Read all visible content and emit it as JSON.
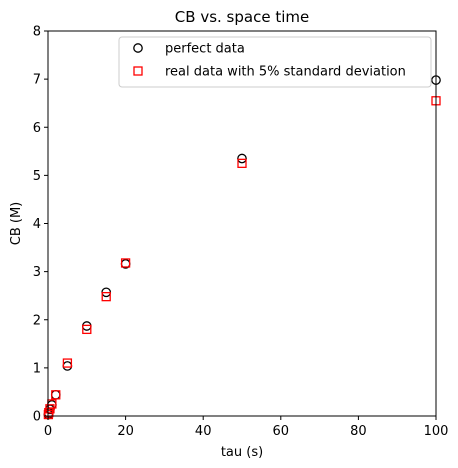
{
  "chart_data": {
    "type": "scatter",
    "title": "CB vs. space time",
    "xlabel": "tau (s)",
    "ylabel": "CB (M)",
    "xlim": [
      0,
      100
    ],
    "ylim": [
      0,
      8
    ],
    "xticks": [
      0,
      20,
      40,
      60,
      80,
      100
    ],
    "yticks": [
      0,
      1,
      2,
      3,
      4,
      5,
      6,
      7,
      8
    ],
    "grid": false,
    "legend_position": "top-right",
    "series": [
      {
        "name": "perfect data",
        "marker": "circle",
        "edge_color": "#000000",
        "x": [
          0.1,
          0.2,
          0.5,
          1,
          2,
          5,
          10,
          15,
          20,
          50,
          100
        ],
        "y": [
          0.03,
          0.06,
          0.14,
          0.23,
          0.44,
          1.04,
          1.87,
          2.57,
          3.16,
          5.35,
          6.98
        ]
      },
      {
        "name": "real data with 5% standard deviation",
        "marker": "square",
        "edge_color": "#ff0000",
        "x": [
          0.1,
          0.2,
          0.5,
          1,
          2,
          5,
          10,
          15,
          20,
          50,
          100
        ],
        "y": [
          0.03,
          0.07,
          0.15,
          0.25,
          0.44,
          1.1,
          1.8,
          2.48,
          3.18,
          5.25,
          6.55
        ]
      }
    ]
  }
}
